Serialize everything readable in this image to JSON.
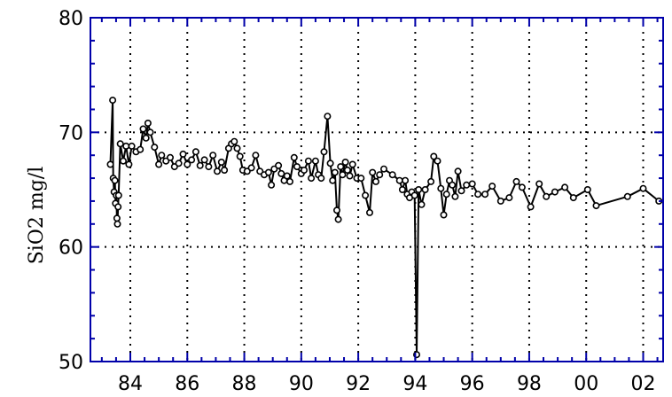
{
  "chart_data": {
    "type": "line",
    "title": "",
    "xlabel": "",
    "ylabel": "SiO2  mg/l",
    "xlim": [
      1982.6,
      2002.7
    ],
    "ylim": [
      50,
      80
    ],
    "grid": true,
    "legend": "none",
    "x_ticks": [
      1984,
      1986,
      1988,
      1990,
      1992,
      1994,
      1996,
      1998,
      2000,
      2002
    ],
    "x_tick_labels": [
      "84",
      "86",
      "88",
      "90",
      "92",
      "94",
      "96",
      "98",
      "00",
      "02"
    ],
    "y_ticks": [
      50,
      60,
      70,
      80
    ],
    "y_tick_labels": [
      "50",
      "60",
      "70",
      "80"
    ],
    "colors": {
      "frame": "#0000aa",
      "line": "#000000",
      "grid": "#000000"
    },
    "series": [
      {
        "marker": "open-circle",
        "points": [
          [
            1983.3,
            67.2
          ],
          [
            1983.38,
            72.8
          ],
          [
            1983.4,
            66.0
          ],
          [
            1983.43,
            64.8
          ],
          [
            1983.46,
            65.8
          ],
          [
            1983.48,
            63.8
          ],
          [
            1983.51,
            64.5
          ],
          [
            1983.53,
            62.5
          ],
          [
            1983.55,
            62.0
          ],
          [
            1983.57,
            63.5
          ],
          [
            1983.59,
            64.5
          ],
          [
            1983.65,
            69.0
          ],
          [
            1983.75,
            67.5
          ],
          [
            1983.85,
            68.8
          ],
          [
            1983.95,
            67.2
          ],
          [
            1984.05,
            68.8
          ],
          [
            1984.2,
            68.3
          ],
          [
            1984.35,
            68.5
          ],
          [
            1984.45,
            70.3
          ],
          [
            1984.55,
            69.5
          ],
          [
            1984.62,
            70.8
          ],
          [
            1984.7,
            70.0
          ],
          [
            1984.85,
            68.7
          ],
          [
            1985.0,
            67.2
          ],
          [
            1985.1,
            68.0
          ],
          [
            1985.25,
            67.5
          ],
          [
            1985.4,
            67.8
          ],
          [
            1985.55,
            67.0
          ],
          [
            1985.7,
            67.3
          ],
          [
            1985.85,
            68.1
          ],
          [
            1986.0,
            67.2
          ],
          [
            1986.15,
            67.6
          ],
          [
            1986.3,
            68.3
          ],
          [
            1986.45,
            67.1
          ],
          [
            1986.6,
            67.6
          ],
          [
            1986.75,
            67.0
          ],
          [
            1986.9,
            68.0
          ],
          [
            1987.05,
            66.6
          ],
          [
            1987.2,
            67.4
          ],
          [
            1987.3,
            66.7
          ],
          [
            1987.45,
            68.6
          ],
          [
            1987.55,
            69.0
          ],
          [
            1987.65,
            69.2
          ],
          [
            1987.75,
            68.6
          ],
          [
            1987.85,
            67.9
          ],
          [
            1987.95,
            66.7
          ],
          [
            1988.1,
            66.6
          ],
          [
            1988.25,
            66.9
          ],
          [
            1988.4,
            68.0
          ],
          [
            1988.55,
            66.6
          ],
          [
            1988.7,
            66.3
          ],
          [
            1988.85,
            66.5
          ],
          [
            1988.95,
            65.4
          ],
          [
            1989.05,
            66.8
          ],
          [
            1989.2,
            67.1
          ],
          [
            1989.3,
            66.4
          ],
          [
            1989.4,
            65.8
          ],
          [
            1989.5,
            66.2
          ],
          [
            1989.6,
            65.7
          ],
          [
            1989.75,
            67.8
          ],
          [
            1989.85,
            67.0
          ],
          [
            1990.0,
            66.4
          ],
          [
            1990.1,
            66.7
          ],
          [
            1990.25,
            67.5
          ],
          [
            1990.35,
            66.0
          ],
          [
            1990.5,
            67.5
          ],
          [
            1990.6,
            66.3
          ],
          [
            1990.7,
            66.0
          ],
          [
            1990.8,
            68.3
          ],
          [
            1990.92,
            71.4
          ],
          [
            1991.02,
            67.3
          ],
          [
            1991.1,
            65.8
          ],
          [
            1991.18,
            66.5
          ],
          [
            1991.25,
            63.2
          ],
          [
            1991.3,
            62.4
          ],
          [
            1991.38,
            67.0
          ],
          [
            1991.45,
            66.3
          ],
          [
            1991.55,
            67.4
          ],
          [
            1991.62,
            66.7
          ],
          [
            1991.7,
            66.2
          ],
          [
            1991.8,
            67.2
          ],
          [
            1991.95,
            66.0
          ],
          [
            1992.1,
            66.0
          ],
          [
            1992.25,
            64.5
          ],
          [
            1992.4,
            63.0
          ],
          [
            1992.5,
            66.5
          ],
          [
            1992.62,
            65.7
          ],
          [
            1992.75,
            66.3
          ],
          [
            1992.9,
            66.8
          ],
          [
            1993.2,
            66.3
          ],
          [
            1993.45,
            65.8
          ],
          [
            1993.55,
            65.0
          ],
          [
            1993.65,
            65.8
          ],
          [
            1993.72,
            64.6
          ],
          [
            1993.8,
            64.3
          ],
          [
            1993.88,
            64.8
          ],
          [
            1993.98,
            64.5
          ],
          [
            1994.05,
            50.6
          ],
          [
            1994.12,
            65.0
          ],
          [
            1994.22,
            63.7
          ],
          [
            1994.35,
            65.0
          ],
          [
            1994.55,
            65.7
          ],
          [
            1994.65,
            67.9
          ],
          [
            1994.78,
            67.5
          ],
          [
            1994.9,
            65.1
          ],
          [
            1995.0,
            62.8
          ],
          [
            1995.1,
            64.6
          ],
          [
            1995.2,
            65.8
          ],
          [
            1995.3,
            65.4
          ],
          [
            1995.4,
            64.4
          ],
          [
            1995.5,
            66.6
          ],
          [
            1995.62,
            64.9
          ],
          [
            1995.8,
            65.4
          ],
          [
            1996.0,
            65.5
          ],
          [
            1996.2,
            64.6
          ],
          [
            1996.45,
            64.6
          ],
          [
            1996.7,
            65.3
          ],
          [
            1997.0,
            64.0
          ],
          [
            1997.3,
            64.3
          ],
          [
            1997.55,
            65.7
          ],
          [
            1997.75,
            65.2
          ],
          [
            1998.05,
            63.5
          ],
          [
            1998.35,
            65.5
          ],
          [
            1998.6,
            64.4
          ],
          [
            1998.9,
            64.8
          ],
          [
            1999.25,
            65.2
          ],
          [
            1999.55,
            64.3
          ],
          [
            2000.05,
            65.0
          ],
          [
            2000.35,
            63.6
          ],
          [
            2001.45,
            64.4
          ],
          [
            2002.0,
            65.1
          ],
          [
            2002.55,
            64.0
          ]
        ]
      }
    ]
  }
}
